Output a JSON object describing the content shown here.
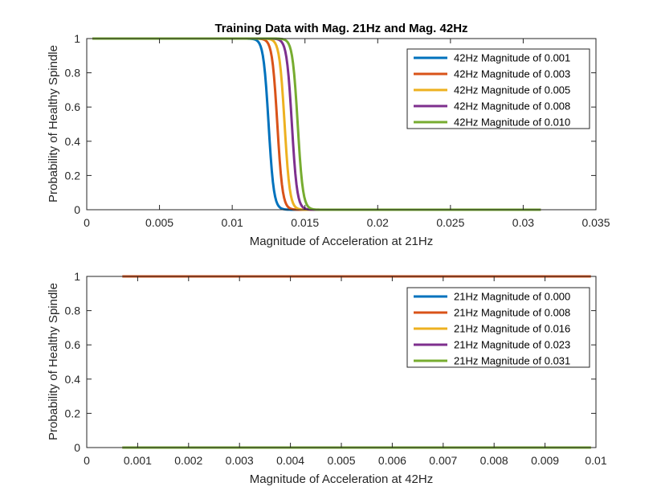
{
  "chart_data": [
    {
      "type": "line",
      "title": "Training Data with Mag. 21Hz and Mag. 42Hz",
      "xlabel": "Magnitude of Acceleration at 21Hz",
      "ylabel": "Probability of Healthy Spindle",
      "xlim": [
        0,
        0.035
      ],
      "ylim": [
        0,
        1
      ],
      "xticks": [
        0,
        0.005,
        0.01,
        0.015,
        0.02,
        0.025,
        0.03,
        0.035
      ],
      "xtick_labels": [
        "0",
        "0.005",
        "0.01",
        "0.015",
        "0.02",
        "0.025",
        "0.03",
        "0.035"
      ],
      "yticks": [
        0,
        0.2,
        0.4,
        0.6,
        0.8,
        1
      ],
      "ytick_labels": [
        "0",
        "0.2",
        "0.4",
        "0.6",
        "0.8",
        "1"
      ],
      "grid": false,
      "legend_position": "top-right",
      "x_range": [
        0.0004,
        0.0312
      ],
      "series": [
        {
          "name": "42Hz Magnitude of 0.001",
          "color": "#0072BD",
          "step_x": 0.0125,
          "x": [
            0.0004,
            0.012,
            0.0123,
            0.0125,
            0.0127,
            0.0131,
            0.0312
          ],
          "y": [
            1,
            1,
            0.9,
            0.5,
            0.1,
            0,
            0
          ]
        },
        {
          "name": "42Hz Magnitude of 0.003",
          "color": "#D95319",
          "step_x": 0.0131,
          "x": [
            0.0004,
            0.0126,
            0.0129,
            0.0131,
            0.0133,
            0.0137,
            0.0312
          ],
          "y": [
            1,
            1,
            0.9,
            0.5,
            0.1,
            0,
            0
          ]
        },
        {
          "name": "42Hz Magnitude of 0.005",
          "color": "#EDB120",
          "step_x": 0.0136,
          "x": [
            0.0004,
            0.0131,
            0.0134,
            0.0136,
            0.0138,
            0.0142,
            0.0312
          ],
          "y": [
            1,
            1,
            0.9,
            0.5,
            0.1,
            0,
            0
          ]
        },
        {
          "name": "42Hz Magnitude of 0.008",
          "color": "#7E2F8E",
          "step_x": 0.0141,
          "x": [
            0.0004,
            0.0136,
            0.0139,
            0.0141,
            0.0143,
            0.0147,
            0.0312
          ],
          "y": [
            1,
            1,
            0.9,
            0.5,
            0.1,
            0,
            0
          ]
        },
        {
          "name": "42Hz Magnitude of 0.010",
          "color": "#77AC30",
          "step_x": 0.0145,
          "x": [
            0.0004,
            0.0139,
            0.0143,
            0.0145,
            0.0147,
            0.0151,
            0.0312
          ],
          "y": [
            1,
            1,
            0.9,
            0.5,
            0.1,
            0,
            0
          ]
        }
      ]
    },
    {
      "type": "line",
      "title": "",
      "xlabel": "Magnitude of Acceleration at 42Hz",
      "ylabel": "Probability of Healthy Spindle",
      "xlim": [
        0,
        0.01
      ],
      "ylim": [
        0,
        1
      ],
      "xticks": [
        0,
        0.001,
        0.002,
        0.003,
        0.004,
        0.005,
        0.006,
        0.007,
        0.008,
        0.009,
        0.01
      ],
      "xtick_labels": [
        "0",
        "0.001",
        "0.002",
        "0.003",
        "0.004",
        "0.005",
        "0.006",
        "0.007",
        "0.008",
        "0.009",
        "0.01"
      ],
      "yticks": [
        0,
        0.2,
        0.4,
        0.6,
        0.8,
        1
      ],
      "ytick_labels": [
        "0",
        "0.2",
        "0.4",
        "0.6",
        "0.8",
        "1"
      ],
      "grid": false,
      "legend_position": "top-right",
      "series": [
        {
          "name": "21Hz Magnitude of 0.000",
          "color": "#0072BD",
          "x": [
            0.0007,
            0.0099
          ],
          "y": [
            1,
            1
          ]
        },
        {
          "name": "21Hz Magnitude of 0.008",
          "color": "#D95319",
          "x": [
            0.0007,
            0.0099
          ],
          "y": [
            1,
            1
          ]
        },
        {
          "name": "21Hz Magnitude of 0.016",
          "color": "#EDB120",
          "x": [
            0.0007,
            0.0099
          ],
          "y": [
            0,
            0
          ]
        },
        {
          "name": "21Hz Magnitude of 0.023",
          "color": "#7E2F8E",
          "x": [
            0.0007,
            0.0099
          ],
          "y": [
            0,
            0
          ]
        },
        {
          "name": "21Hz Magnitude of 0.031",
          "color": "#77AC30",
          "x": [
            0.0007,
            0.0099
          ],
          "y": [
            0,
            0
          ]
        }
      ]
    }
  ]
}
